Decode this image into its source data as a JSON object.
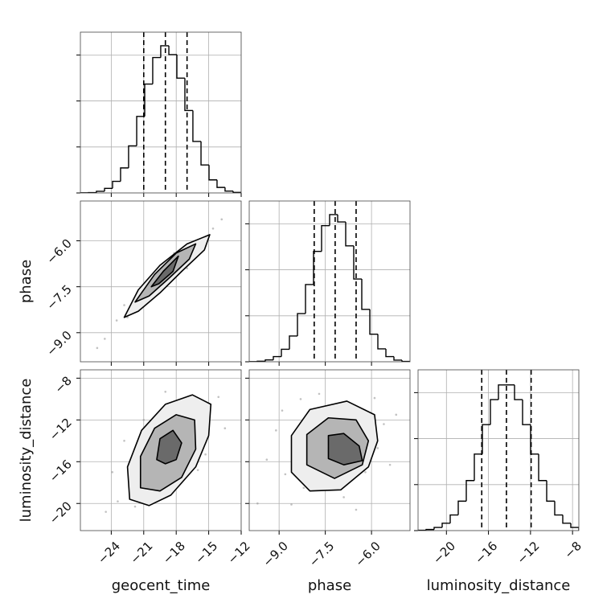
{
  "chart_data": [
    {
      "type": "histogram",
      "grid": true,
      "color": "#000000",
      "bins": [
        -26.85,
        -26.11,
        -25.37,
        -24.62,
        -23.88,
        -23.14,
        -22.4,
        -21.65,
        -20.91,
        -20.17,
        -19.43,
        -18.68,
        -17.94,
        -17.2,
        -16.46,
        -15.71,
        -14.97,
        -14.23,
        -13.49,
        -12.74,
        -12.0
      ],
      "counts": [
        1,
        2,
        9,
        25,
        63,
        136,
        256,
        416,
        592,
        736,
        800,
        752,
        624,
        448,
        280,
        152,
        71,
        30,
        10,
        3
      ],
      "quantiles": [
        -21,
        -19,
        -17
      ],
      "xlim": [
        -26.85,
        -12
      ],
      "xticks": [
        -24,
        -21,
        -18,
        -15,
        -12
      ],
      "ylim": [
        0,
        874
      ],
      "yticks": [
        0,
        250,
        500,
        750
      ]
    },
    {
      "type": "scatter",
      "grid": true,
      "ylabel": "phase",
      "point_color": "#999999",
      "contour_colors": [
        "#eeeeee",
        "#b5b5b5",
        "#6a6a6a"
      ],
      "x": [
        -23.5,
        -22.8,
        -22.1,
        -21.6,
        -21.0,
        -20.7,
        -20.2,
        -19.8,
        -19.5,
        -19.1,
        -18.8,
        -18.4,
        -18.0,
        -17.6,
        -17.2,
        -16.8,
        -16.3,
        -15.8,
        -15.2,
        -14.6,
        -24.6,
        -25.3,
        -13.8,
        -20.5,
        -18.2,
        -21.9,
        -17.0,
        -19.3,
        -22.5,
        -16.0
      ],
      "y": [
        -8.6,
        -8.1,
        -8.3,
        -7.7,
        -7.9,
        -7.4,
        -7.6,
        -7.2,
        -7.5,
        -7.0,
        -7.3,
        -6.9,
        -6.7,
        -6.9,
        -6.5,
        -6.6,
        -6.2,
        -6.3,
        -5.9,
        -5.6,
        -9.2,
        -9.5,
        -5.3,
        -7.9,
        -6.4,
        -7.9,
        -6.9,
        -7.0,
        -8.5,
        -6.0
      ],
      "contours": [
        {
          "x": [
            -22.8,
            -21.5,
            -19.5,
            -17.0,
            -14.9,
            -15.4,
            -17.5,
            -19.5,
            -21.5
          ],
          "y": [
            -8.5,
            -7.6,
            -6.8,
            -6.1,
            -5.8,
            -6.3,
            -7.0,
            -7.7,
            -8.3
          ]
        },
        {
          "x": [
            -21.8,
            -20.0,
            -18.0,
            -16.2,
            -16.8,
            -18.6,
            -20.5
          ],
          "y": [
            -8.0,
            -7.1,
            -6.4,
            -6.1,
            -6.6,
            -7.2,
            -7.8
          ]
        },
        {
          "x": [
            -20.3,
            -19.2,
            -17.8,
            -18.3,
            -19.6
          ],
          "y": [
            -7.5,
            -7.0,
            -6.5,
            -7.0,
            -7.4
          ]
        }
      ],
      "xlim": [
        -26.85,
        -12
      ],
      "xticks": [
        -24,
        -21,
        -18,
        -15,
        -12
      ],
      "ylim": [
        -9.95,
        -4.7
      ],
      "yticks": [
        {
          "value": -9.0,
          "label": "−9.0"
        },
        {
          "value": -7.5,
          "label": "−7.5"
        },
        {
          "value": -6.0,
          "label": "−6.0"
        }
      ]
    },
    {
      "type": "histogram",
      "grid": true,
      "color": "#000000",
      "bins": [
        -9.97,
        -9.709,
        -9.448,
        -9.187,
        -8.926,
        -8.665,
        -8.404,
        -8.143,
        -7.882,
        -7.621,
        -7.36,
        -7.099,
        -6.838,
        -6.577,
        -6.316,
        -6.055,
        -5.794,
        -5.533,
        -5.272,
        -5.011,
        -4.75
      ],
      "counts": [
        1,
        3,
        10,
        28,
        68,
        140,
        262,
        420,
        600,
        740,
        800,
        760,
        630,
        450,
        285,
        150,
        70,
        28,
        9,
        2
      ],
      "quantiles": [
        -7.86,
        -7.18,
        -6.5
      ],
      "xlim": [
        -9.97,
        -4.75
      ],
      "xticks": [
        -9,
        -7.5,
        -6
      ],
      "ylim": [
        0,
        874
      ],
      "yticks": [
        0,
        250,
        500,
        750
      ]
    },
    {
      "type": "scatter",
      "grid": true,
      "xlabel": "geocent_time",
      "ylabel": "luminosity_distance",
      "point_color": "#999999",
      "contour_colors": [
        "#eeeeee",
        "#b5b5b5",
        "#6a6a6a"
      ],
      "x": [
        -22.1,
        -21.4,
        -20.8,
        -20.3,
        -19.9,
        -19.5,
        -19.2,
        -18.8,
        -18.4,
        -18.0,
        -17.6,
        -17.2,
        -16.7,
        -16.2,
        -15.6,
        -15.0,
        -23.4,
        -24.5,
        -14.1,
        -21.0,
        -17.9,
        -20.0,
        -16.0,
        -22.8,
        -18.7,
        -13.5,
        -23.9,
        -19.0,
        -15.3,
        -21.8
      ],
      "y": [
        -17.5,
        -15.2,
        -18.3,
        -13.4,
        -16.1,
        -14.0,
        -11.8,
        -15.5,
        -13.0,
        -16.8,
        -12.2,
        -14.6,
        -11.0,
        -13.8,
        -12.5,
        -10.5,
        -19.8,
        -20.8,
        -9.8,
        -12.0,
        -10.2,
        -19.5,
        -16.8,
        -14.0,
        -17.9,
        -12.8,
        -17.0,
        -9.3,
        -15.3,
        -20.3
      ],
      "contours": [
        {
          "x": [
            -22.3,
            -22.5,
            -21.2,
            -19.0,
            -16.5,
            -14.8,
            -15.0,
            -16.2,
            -18.5,
            -20.5
          ],
          "y": [
            -19.6,
            -16.5,
            -13.0,
            -10.5,
            -9.6,
            -10.5,
            -13.5,
            -16.5,
            -19.2,
            -20.2
          ]
        },
        {
          "x": [
            -21.3,
            -21.3,
            -20.0,
            -18.0,
            -16.3,
            -16.2,
            -17.5,
            -19.5
          ],
          "y": [
            -18.5,
            -15.5,
            -12.8,
            -11.5,
            -12.0,
            -14.8,
            -17.5,
            -18.8
          ]
        },
        {
          "x": [
            -19.8,
            -19.5,
            -18.3,
            -17.5,
            -18.0,
            -19.0
          ],
          "y": [
            -15.8,
            -13.8,
            -13.0,
            -14.2,
            -15.8,
            -16.2
          ]
        }
      ],
      "xlim": [
        -26.85,
        -12
      ],
      "xticks": [
        {
          "value": -24,
          "label": "−24"
        },
        {
          "value": -21,
          "label": "−21"
        },
        {
          "value": -18,
          "label": "−18"
        },
        {
          "value": -15,
          "label": "−15"
        },
        {
          "value": -12,
          "label": "−12"
        }
      ],
      "ylim": [
        -22.6,
        -7.2
      ],
      "yticks": [
        {
          "value": -20,
          "label": "−20"
        },
        {
          "value": -16,
          "label": "−16"
        },
        {
          "value": -12,
          "label": "−12"
        },
        {
          "value": -8,
          "label": "−8"
        }
      ]
    },
    {
      "type": "scatter",
      "grid": true,
      "xlabel": "phase",
      "point_color": "#999999",
      "contour_colors": [
        "#eeeeee",
        "#b5b5b5",
        "#6a6a6a"
      ],
      "x": [
        -8.8,
        -8.5,
        -8.2,
        -8.0,
        -7.8,
        -7.6,
        -7.4,
        -7.2,
        -7.0,
        -6.8,
        -6.6,
        -6.4,
        -6.2,
        -6.0,
        -5.8,
        -5.6,
        -9.4,
        -9.7,
        -5.2,
        -8.9,
        -6.9,
        -5.4,
        -7.7,
        -6.5,
        -8.6,
        -5.9,
        -9.1,
        -7.3,
        -6.3,
        -8.3
      ],
      "y": [
        -17.2,
        -14.6,
        -18.5,
        -12.3,
        -15.9,
        -13.5,
        -11.2,
        -16.4,
        -12.8,
        -15.0,
        -10.8,
        -13.9,
        -17.0,
        -11.9,
        -14.7,
        -12.4,
        -15.8,
        -20.0,
        -11.5,
        -11.1,
        -19.4,
        -16.3,
        -9.5,
        -20.6,
        -20.1,
        -9.9,
        -13.0,
        -14.2,
        -15.6,
        -10.0
      ],
      "contours": [
        {
          "x": [
            -8.6,
            -8.6,
            -8.0,
            -6.8,
            -5.9,
            -5.8,
            -6.1,
            -7.0,
            -8.0
          ],
          "y": [
            -17.0,
            -13.5,
            -11.0,
            -10.2,
            -11.5,
            -14.0,
            -16.5,
            -18.7,
            -18.8
          ]
        },
        {
          "x": [
            -8.1,
            -8.1,
            -7.4,
            -6.5,
            -6.1,
            -6.3,
            -7.2
          ],
          "y": [
            -16.3,
            -13.4,
            -11.8,
            -12.0,
            -14.0,
            -16.3,
            -17.6
          ]
        },
        {
          "x": [
            -7.4,
            -7.4,
            -6.9,
            -6.4,
            -6.3,
            -6.9
          ],
          "y": [
            -15.7,
            -13.5,
            -13.3,
            -14.5,
            -15.9,
            -16.3
          ]
        }
      ],
      "xlim": [
        -9.97,
        -4.75
      ],
      "xticks": [
        {
          "value": -9.0,
          "label": "−9.0"
        },
        {
          "value": -7.5,
          "label": "−7.5"
        },
        {
          "value": -6.0,
          "label": "−6.0"
        }
      ],
      "ylim": [
        -22.6,
        -7.2
      ],
      "yticks": [
        -20,
        -16,
        -12,
        -8
      ]
    },
    {
      "type": "histogram",
      "grid": true,
      "color": "#000000",
      "xlabel": "luminosity_distance",
      "bins": [
        -22.7,
        -21.935,
        -21.17,
        -20.405,
        -19.64,
        -18.875,
        -18.11,
        -17.345,
        -16.58,
        -15.815,
        -15.05,
        -14.285,
        -13.52,
        -12.755,
        -11.99,
        -11.225,
        -10.46,
        -9.695,
        -8.93,
        -8.165,
        -7.4
      ],
      "counts": [
        2,
        6,
        17,
        40,
        85,
        160,
        272,
        416,
        576,
        712,
        792,
        792,
        712,
        576,
        416,
        272,
        160,
        85,
        40,
        17
      ],
      "quantiles": [
        -16.64,
        -14.29,
        -11.94
      ],
      "xlim": [
        -22.7,
        -7.4
      ],
      "xticks": [
        {
          "value": -20,
          "label": "−20"
        },
        {
          "value": -16,
          "label": "−16"
        },
        {
          "value": -12,
          "label": "−12"
        },
        {
          "value": -8,
          "label": "−8"
        }
      ],
      "ylim": [
        0,
        874
      ],
      "yticks": [
        0,
        250,
        500,
        750
      ]
    }
  ]
}
